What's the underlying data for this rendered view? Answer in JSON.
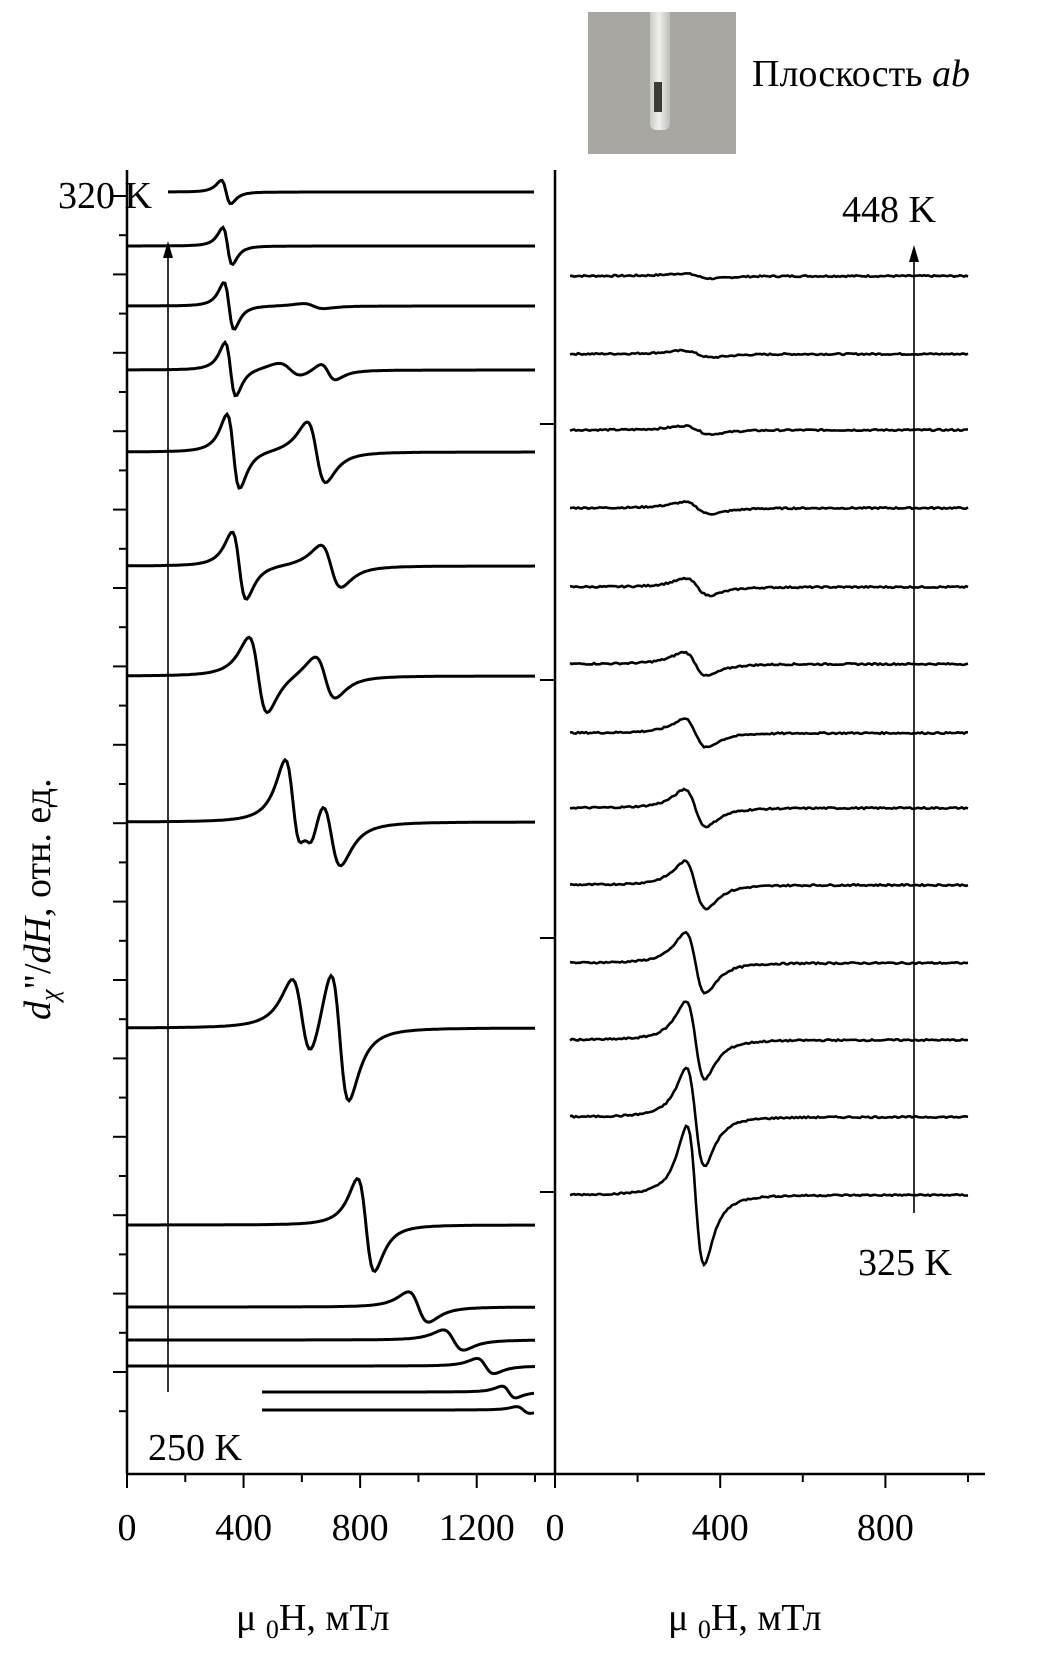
{
  "photo": {
    "caption_text": "Плоскость ",
    "caption_italic": "ab"
  },
  "colors": {
    "ink": "#000000",
    "photo_bg": "#a9a7a2"
  },
  "chart_data": [
    {
      "type": "line",
      "panel": "left",
      "ylabel_parts": [
        "d",
        "χ",
        "\"/",
        "dH",
        ", отн. ед."
      ],
      "xlabel": "μ0H, мТл",
      "xticks": [
        0,
        400,
        800,
        1200
      ],
      "xlim": [
        0,
        1400
      ],
      "temperature_labels": {
        "top": "320 K",
        "bottom": "250 K"
      },
      "trace_count": 15,
      "series_resonances_mT": [
        {
          "baseline": 0,
          "peaks": [
            {
              "center": 340,
              "width": 28,
              "amplitude": 14
            }
          ]
        },
        {
          "baseline": 0,
          "peaks": [
            {
              "center": 345,
              "width": 28,
              "amplitude": 22
            }
          ]
        },
        {
          "baseline": 0,
          "peaks": [
            {
              "center": 350,
              "width": 30,
              "amplitude": 28
            },
            {
              "center": 640,
              "width": 60,
              "amplitude": 3
            }
          ]
        },
        {
          "baseline": 0,
          "peaks": [
            {
              "center": 355,
              "width": 32,
              "amplitude": 32
            },
            {
              "center": 560,
              "width": 70,
              "amplitude": 8
            },
            {
              "center": 690,
              "width": 45,
              "amplitude": 10
            }
          ]
        },
        {
          "baseline": 0,
          "peaks": [
            {
              "center": 365,
              "width": 38,
              "amplitude": 44
            },
            {
              "center": 650,
              "width": 55,
              "amplitude": 36
            }
          ]
        },
        {
          "baseline": 0,
          "peaks": [
            {
              "center": 385,
              "width": 42,
              "amplitude": 40
            },
            {
              "center": 700,
              "width": 60,
              "amplitude": 25
            }
          ]
        },
        {
          "baseline": 0,
          "peaks": [
            {
              "center": 450,
              "width": 55,
              "amplitude": 45
            },
            {
              "center": 680,
              "width": 60,
              "amplitude": 25
            }
          ]
        },
        {
          "baseline": 0,
          "peaks": [
            {
              "center": 570,
              "width": 50,
              "amplitude": 62
            },
            {
              "center": 620,
              "width": 40,
              "amplitude": 22
            },
            {
              "center": 700,
              "width": 60,
              "amplitude": 45
            }
          ]
        },
        {
          "baseline": 0,
          "peaks": [
            {
              "center": 600,
              "width": 60,
              "amplitude": 50
            },
            {
              "center": 730,
              "width": 55,
              "amplitude": 80
            }
          ]
        },
        {
          "baseline": 0,
          "peaks": [
            {
              "center": 820,
              "width": 50,
              "amplitude": 55
            }
          ]
        },
        {
          "baseline": 0,
          "peaks": [
            {
              "center": 1000,
              "width": 60,
              "amplitude": 18
            }
          ]
        },
        {
          "baseline": 0,
          "peaks": [
            {
              "center": 1120,
              "width": 60,
              "amplitude": 12
            }
          ]
        },
        {
          "baseline": 0,
          "peaks": [
            {
              "center": 1230,
              "width": 50,
              "amplitude": 9
            }
          ]
        },
        {
          "baseline": 0,
          "peaks": [
            {
              "center": 1310,
              "width": 40,
              "amplitude": 7
            }
          ]
        },
        {
          "baseline": 0,
          "peaks": [
            {
              "center": 1360,
              "width": 40,
              "amplitude": 4
            }
          ]
        }
      ]
    },
    {
      "type": "line",
      "panel": "right",
      "xlabel": "μ0H, мТл",
      "xticks": [
        0,
        400,
        800
      ],
      "xlim": [
        0,
        1000
      ],
      "temperature_labels": {
        "top": "448 K",
        "bottom": "325 K"
      },
      "trace_count": 13,
      "series_resonances_mT": [
        {
          "center": 345,
          "width": 60,
          "amplitude": 3
        },
        {
          "center": 345,
          "width": 60,
          "amplitude": 4
        },
        {
          "center": 345,
          "width": 55,
          "amplitude": 5
        },
        {
          "center": 345,
          "width": 55,
          "amplitude": 7
        },
        {
          "center": 345,
          "width": 50,
          "amplitude": 10
        },
        {
          "center": 340,
          "width": 48,
          "amplitude": 14
        },
        {
          "center": 340,
          "width": 46,
          "amplitude": 17
        },
        {
          "center": 340,
          "width": 45,
          "amplitude": 22
        },
        {
          "center": 340,
          "width": 44,
          "amplitude": 28
        },
        {
          "center": 340,
          "width": 42,
          "amplitude": 36
        },
        {
          "center": 340,
          "width": 40,
          "amplitude": 46
        },
        {
          "center": 340,
          "width": 38,
          "amplitude": 58
        },
        {
          "center": 340,
          "width": 36,
          "amplitude": 82
        }
      ]
    }
  ]
}
